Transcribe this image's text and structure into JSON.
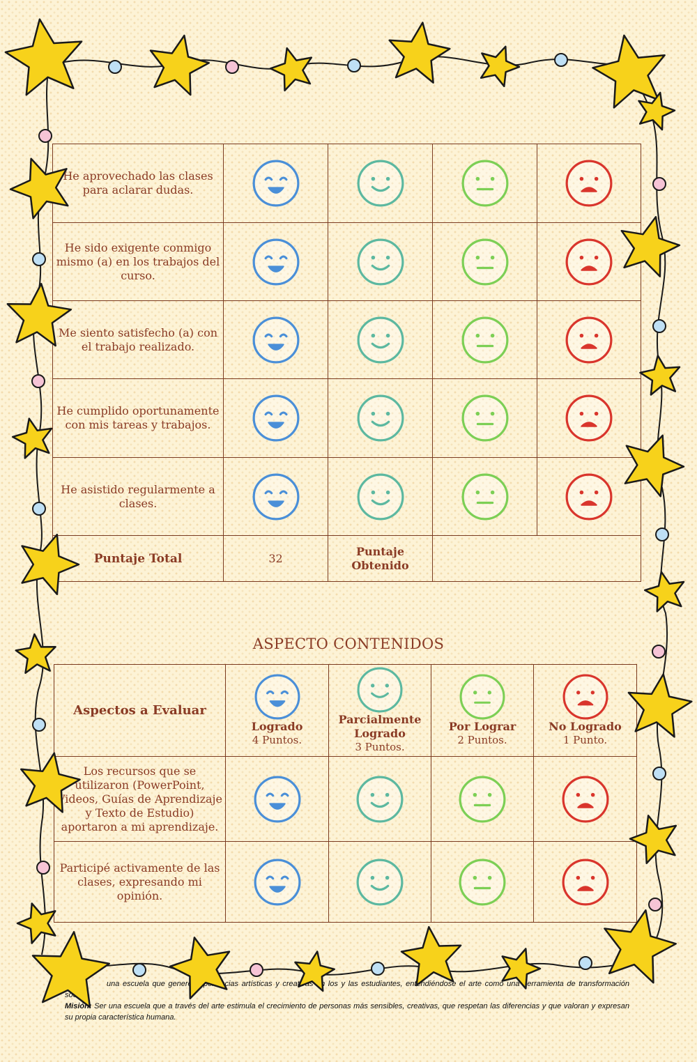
{
  "colors": {
    "logrado": "#4a8fd8",
    "parcial": "#5cb8a0",
    "por_lograr": "#7ccf55",
    "no_logrado": "#d9352c",
    "text": "#8a3b25",
    "border": "#7a3a20"
  },
  "icons": [
    "happy-face-icon",
    "smile-face-icon",
    "neutral-face-icon",
    "sad-face-icon",
    "star-icon"
  ],
  "table1": {
    "rows": [
      {
        "text": "He aprovechado las clases para aclarar dudas."
      },
      {
        "text": "He sido exigente conmigo mismo (a) en los trabajos del curso."
      },
      {
        "text": "Me siento satisfecho (a) con el trabajo realizado."
      },
      {
        "text": "He cumplido oportunamente con mis tareas y trabajos."
      },
      {
        "text": "He asistido regularmente a clases."
      }
    ],
    "total_label": "Puntaje Total",
    "total_value": "32",
    "obtained_label": "Puntaje Obtenido",
    "obtained_value": ""
  },
  "section2": {
    "title": "ASPECTO CONTENIDOS",
    "header": {
      "aspect_label": "Aspectos a Evaluar",
      "levels": [
        {
          "label": "Logrado",
          "points": "4 Puntos."
        },
        {
          "label": "Parcialmente Logrado",
          "points": "3 Puntos."
        },
        {
          "label": "Por Lograr",
          "points": "2 Puntos."
        },
        {
          "label": "No Logrado",
          "points": "1 Punto."
        }
      ]
    },
    "rows": [
      {
        "text": "Los recursos que se utilizaron (PowerPoint, Videos, Guías de Aprendizaje y Texto de Estudio) aportaron a mi aprendizaje."
      },
      {
        "text": "Participé activamente de las clases, expresando mi opinión."
      }
    ]
  },
  "footer": {
    "vision_fragment": "una escuela que genere experiencias artísticas y creativas en los y las estudiantes, entendiéndose el arte como una herramienta de transformación social.",
    "mission_label": "Misión:",
    "mission_text": "Ser una escuela que a través del arte estimula el crecimiento de personas más sensibles, creativas, que respetan las diferencias y que valoran y expresan su propia característica humana."
  }
}
